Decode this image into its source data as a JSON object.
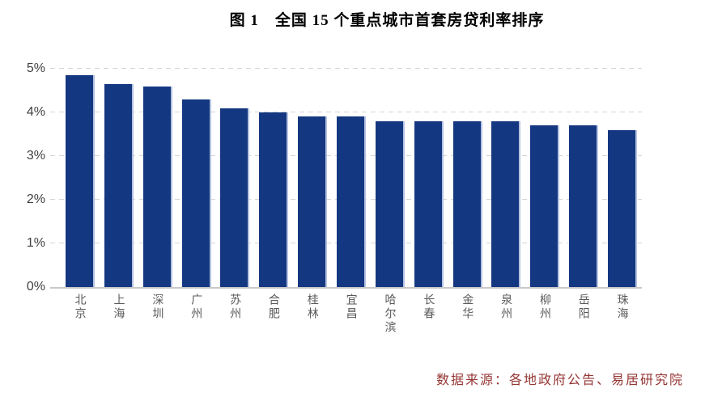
{
  "title": "图 1　全国 15 个重点城市首套房贷利率排序",
  "source_note": "数据来源：各地政府公告、易居研究院",
  "colors": {
    "bar": "#143781",
    "bar_edge": "#b5c2e0",
    "gridline": "#d4d4d4",
    "axis_line": "#c9c9c9",
    "ytick_label": "#3f3f3f",
    "city_label": "#595959",
    "source_text": "#943634",
    "title_text": "#000000"
  },
  "chart_data": {
    "type": "bar",
    "title": "图 1　全国 15 个重点城市首套房贷利率排序",
    "categories": [
      "北京",
      "上海",
      "深圳",
      "广州",
      "苏州",
      "合肥",
      "桂林",
      "宜昌",
      "哈尔滨",
      "长春",
      "金华",
      "泉州",
      "柳州",
      "岳阳",
      "珠海"
    ],
    "values": [
      4.85,
      4.65,
      4.6,
      4.3,
      4.1,
      4.0,
      3.9,
      3.9,
      3.8,
      3.8,
      3.8,
      3.8,
      3.7,
      3.7,
      3.6
    ],
    "unit": "%",
    "xlabel": "",
    "ylabel": "",
    "ylim": [
      0,
      5
    ],
    "yticks": [
      0,
      1,
      2,
      3,
      4,
      5
    ],
    "ytick_labels": [
      "0%",
      "1%",
      "2%",
      "3%",
      "4%",
      "5%"
    ],
    "grid": "horizontal-dashed",
    "legend": "none",
    "bar_color": "#143781",
    "source": "数据来源：各地政府公告、易居研究院"
  }
}
